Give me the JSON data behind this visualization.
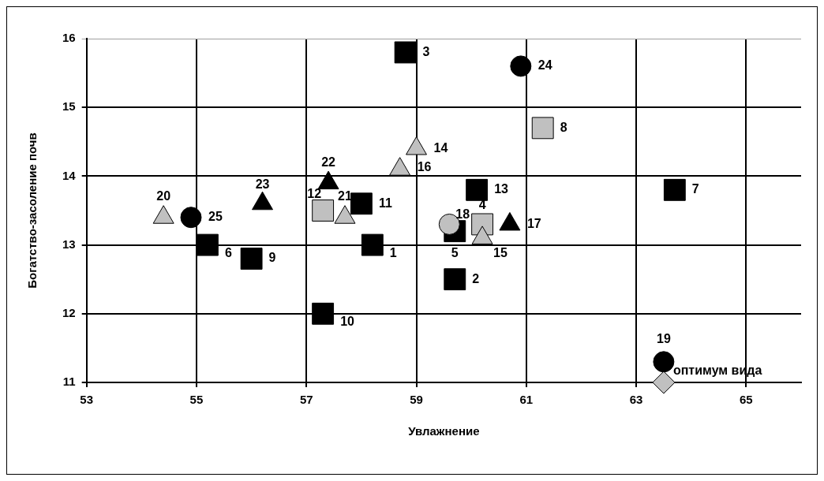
{
  "chart_data": {
    "type": "scatter",
    "xlabel": "Увлажнение",
    "ylabel": "Богатство-засоление почв",
    "xlim": [
      53,
      66
    ],
    "xticks": [
      53,
      55,
      57,
      59,
      61,
      63,
      65
    ],
    "ylim": [
      11,
      16
    ],
    "yticks": [
      11,
      12,
      13,
      14,
      15,
      16
    ],
    "grid": true,
    "legend": false,
    "series": [
      {
        "marker": "square",
        "color": "#000000",
        "x": [
          58.2,
          59.7,
          58.8,
          59.7,
          55.2,
          63.7,
          56.0,
          57.3,
          58.0,
          60.1
        ],
        "values": [
          13.0,
          12.5,
          15.8,
          13.2,
          13.0,
          13.8,
          12.8,
          12.0,
          13.6,
          13.8
        ]
      },
      {
        "marker": "square",
        "color": "#c0c0c0",
        "x": [
          60.2,
          61.3,
          57.3
        ],
        "values": [
          13.3,
          14.7,
          13.5
        ]
      },
      {
        "marker": "triangle",
        "color": "#c0c0c0",
        "x": [
          59.0,
          60.2,
          58.7,
          54.4,
          57.7
        ],
        "values": [
          14.4,
          13.1,
          14.1,
          13.4,
          13.4
        ]
      },
      {
        "marker": "triangle",
        "color": "#000000",
        "x": [
          60.7,
          57.4,
          56.2
        ],
        "values": [
          13.3,
          13.9,
          13.6
        ]
      },
      {
        "marker": "circle",
        "color": "#000000",
        "x": [
          63.5,
          60.9,
          54.9
        ],
        "values": [
          11.3,
          15.6,
          13.4
        ]
      },
      {
        "marker": "circle",
        "color": "#c0c0c0",
        "x": [
          59.6
        ],
        "values": [
          13.3
        ]
      },
      {
        "marker": "diamond",
        "color": "#c0c0c0",
        "x": [
          63.5
        ],
        "values": [
          11.0
        ]
      }
    ],
    "annotations": [
      {
        "text": "1",
        "x": 58.2,
        "y": 13.0
      },
      {
        "text": "2",
        "x": 59.7,
        "y": 12.5
      },
      {
        "text": "3",
        "x": 58.8,
        "y": 15.8
      },
      {
        "text": "4",
        "x": 60.2,
        "y": 13.3
      },
      {
        "text": "5",
        "x": 59.7,
        "y": 13.2
      },
      {
        "text": "6",
        "x": 55.2,
        "y": 13.0
      },
      {
        "text": "7",
        "x": 63.7,
        "y": 13.8
      },
      {
        "text": "8",
        "x": 61.3,
        "y": 14.7
      },
      {
        "text": "9",
        "x": 56.0,
        "y": 12.8
      },
      {
        "text": "10",
        "x": 57.3,
        "y": 12.0
      },
      {
        "text": "11",
        "x": 58.0,
        "y": 13.6
      },
      {
        "text": "12",
        "x": 57.3,
        "y": 13.5
      },
      {
        "text": "13",
        "x": 60.1,
        "y": 13.8
      },
      {
        "text": "14",
        "x": 59.0,
        "y": 14.4
      },
      {
        "text": "15",
        "x": 60.2,
        "y": 13.1
      },
      {
        "text": "16",
        "x": 58.7,
        "y": 14.1
      },
      {
        "text": "17",
        "x": 60.7,
        "y": 13.3
      },
      {
        "text": "18",
        "x": 59.6,
        "y": 13.3
      },
      {
        "text": "19",
        "x": 63.5,
        "y": 11.3
      },
      {
        "text": "20",
        "x": 54.4,
        "y": 13.4
      },
      {
        "text": "21",
        "x": 57.7,
        "y": 13.4
      },
      {
        "text": "22",
        "x": 57.4,
        "y": 13.9
      },
      {
        "text": "23",
        "x": 56.2,
        "y": 13.6
      },
      {
        "text": "24",
        "x": 60.9,
        "y": 15.6
      },
      {
        "text": "25",
        "x": 54.9,
        "y": 13.4
      },
      {
        "text": "оптимум вида",
        "x": 63.5,
        "y": 11.0
      }
    ]
  }
}
